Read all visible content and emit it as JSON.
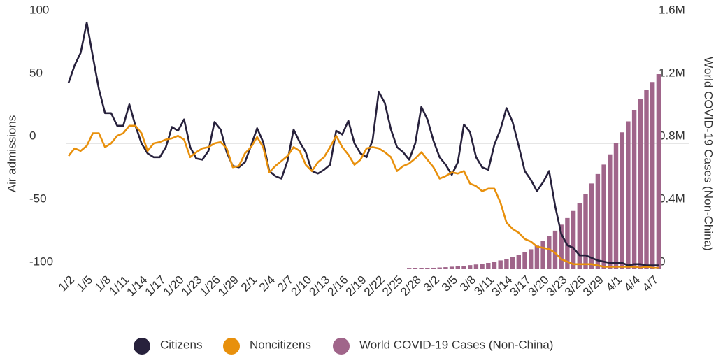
{
  "chart_data": {
    "type": "combo",
    "y_label": "Air admissions",
    "y2_label": "World COVID-19 Cases (Non-China)",
    "ylim": [
      -100,
      100
    ],
    "yticks": [
      -100,
      -50,
      0,
      50,
      100
    ],
    "y2lim": [
      0,
      1600000
    ],
    "y2ticks": [
      0,
      {
        "value": 400000,
        "label": "0.4M"
      },
      {
        "value": 800000,
        "label": "0.8M"
      },
      {
        "value": 1200000,
        "label": "1.2M"
      },
      {
        "value": 1600000,
        "label": "1.6M"
      }
    ],
    "zero_line": true,
    "categories": [
      "1/2",
      null,
      null,
      "1/5",
      null,
      null,
      "1/8",
      null,
      null,
      "1/11",
      null,
      null,
      "1/14",
      null,
      null,
      "1/17",
      null,
      null,
      "1/20",
      null,
      null,
      "1/23",
      null,
      null,
      "1/26",
      null,
      null,
      "1/29",
      null,
      null,
      "2/1",
      null,
      null,
      "2/4",
      null,
      null,
      "2/7",
      null,
      null,
      "2/10",
      null,
      null,
      "2/13",
      null,
      null,
      "2/16",
      null,
      null,
      "2/19",
      null,
      null,
      "2/22",
      null,
      null,
      "2/25",
      null,
      null,
      "2/28",
      null,
      null,
      "3/2",
      null,
      null,
      "3/5",
      null,
      null,
      "3/8",
      null,
      null,
      "3/11",
      null,
      null,
      "3/14",
      null,
      null,
      "3/17",
      null,
      null,
      "3/20",
      null,
      null,
      "3/23",
      null,
      null,
      "3/26",
      null,
      null,
      "3/29",
      null,
      null,
      "4/1",
      null,
      null,
      "4/4",
      null,
      null,
      "4/7",
      null
    ],
    "series": [
      {
        "name": "Citizens",
        "type": "line",
        "color": "#27213c",
        "values": [
          48,
          62,
          72,
          96,
          69,
          43,
          24,
          24,
          14,
          14,
          31,
          14,
          0,
          -8,
          -11,
          -11,
          -3,
          13,
          10,
          19,
          -3,
          -12,
          -13,
          -6,
          17,
          11,
          -7,
          -18,
          -19,
          -15,
          -2,
          12,
          1,
          -22,
          -26,
          -28,
          -14,
          11,
          1,
          -7,
          -22,
          -24,
          -21,
          -17,
          10,
          7,
          18,
          0,
          -8,
          -11,
          3,
          41,
          32,
          11,
          -3,
          -7,
          -13,
          0,
          29,
          19,
          2,
          -11,
          -17,
          -25,
          -15,
          15,
          9,
          -11,
          -19,
          -21,
          -1,
          11,
          28,
          17,
          -2,
          -22,
          -29,
          -38,
          -31,
          -22,
          -50,
          -72,
          -81,
          -83,
          -89,
          -89,
          -91,
          -93,
          -94,
          -95,
          -95,
          -95,
          -97,
          -96,
          -96,
          -97,
          -97,
          -97
        ]
      },
      {
        "name": "Noncitizens",
        "type": "line",
        "color": "#e8900c",
        "values": [
          -10,
          -4,
          -6,
          -2,
          8,
          8,
          -3,
          0,
          6,
          8,
          14,
          14,
          8,
          -6,
          0,
          1,
          3,
          4,
          6,
          3,
          -11,
          -7,
          -4,
          -3,
          0,
          1,
          -4,
          -19,
          -18,
          -8,
          -3,
          5,
          -3,
          -23,
          -18,
          -14,
          -10,
          -3,
          -6,
          -17,
          -22,
          -15,
          -11,
          -3,
          6,
          -3,
          -9,
          -17,
          -13,
          -4,
          -3,
          -4,
          -7,
          -11,
          -22,
          -18,
          -16,
          -12,
          -7,
          -13,
          -19,
          -28,
          -26,
          -23,
          -24,
          -22,
          -32,
          -34,
          -38,
          -36,
          -36,
          -47,
          -63,
          -68,
          -71,
          -76,
          -78,
          -82,
          -83,
          -84,
          -87,
          -92,
          -94,
          -96,
          -96,
          -96,
          -96,
          -97,
          -98,
          -98,
          -98,
          -98,
          -98,
          -98,
          -99,
          -98,
          -99,
          -99
        ]
      },
      {
        "name": "World COVID-19 Cases (Non-China)",
        "type": "bar",
        "axis": "y2",
        "color": "#a0658a",
        "values": [
          null,
          null,
          null,
          null,
          null,
          null,
          null,
          null,
          null,
          null,
          null,
          null,
          null,
          null,
          null,
          null,
          null,
          null,
          null,
          null,
          null,
          null,
          null,
          null,
          null,
          null,
          null,
          null,
          null,
          null,
          null,
          null,
          null,
          null,
          null,
          null,
          null,
          null,
          null,
          null,
          null,
          null,
          null,
          null,
          null,
          null,
          null,
          null,
          null,
          null,
          null,
          null,
          null,
          null,
          null,
          null,
          4000,
          5000,
          6000,
          7000,
          9000,
          11000,
          13000,
          16000,
          19000,
          22000,
          26000,
          30000,
          34000,
          40000,
          47000,
          56000,
          66000,
          78000,
          92000,
          108000,
          127000,
          150000,
          178000,
          210000,
          245000,
          283000,
          325000,
          370000,
          420000,
          480000,
          545000,
          605000,
          665000,
          730000,
          800000,
          870000,
          940000,
          1010000,
          1080000,
          1140000,
          1190000,
          1240000
        ]
      }
    ]
  }
}
